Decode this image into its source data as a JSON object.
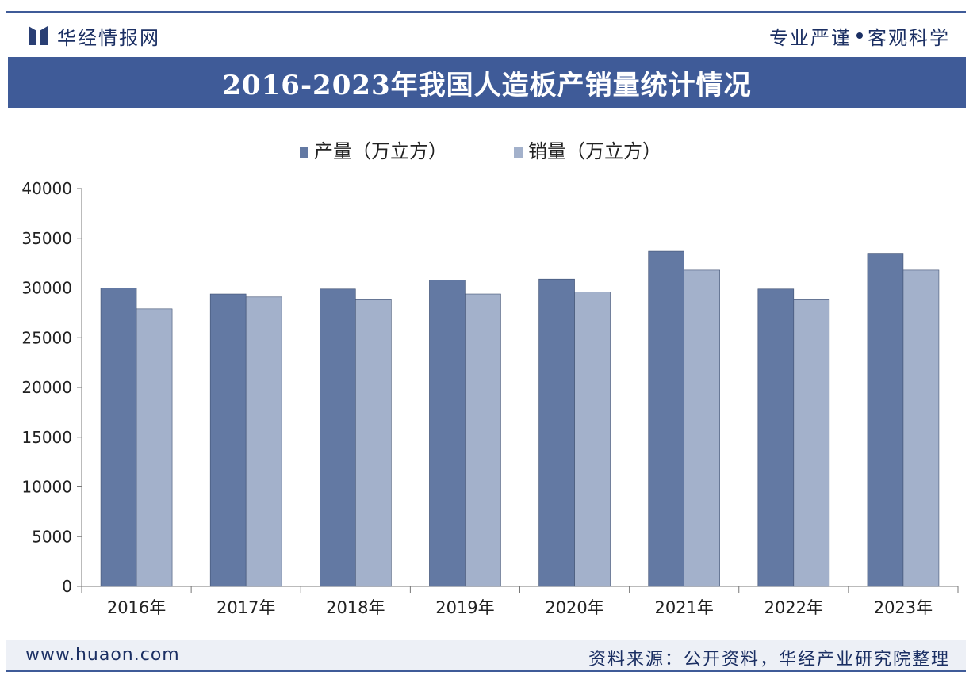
{
  "header": {
    "brand_name": "华经情报网",
    "motto_left": "专业严谨",
    "motto_right": "客观科学"
  },
  "title": "2016-2023年我国人造板产销量统计情况",
  "chart_data": {
    "type": "bar",
    "categories": [
      "2016年",
      "2017年",
      "2018年",
      "2019年",
      "2020年",
      "2021年",
      "2022年",
      "2023年"
    ],
    "series": [
      {
        "name": "产量（万立方）",
        "color": "#6379a3",
        "values": [
          30000,
          29400,
          29900,
          30800,
          30900,
          33700,
          29900,
          33500
        ]
      },
      {
        "name": "销量（万立方）",
        "color": "#a3b1cb",
        "values": [
          27900,
          29100,
          28900,
          29400,
          29600,
          31800,
          28900,
          31800
        ]
      }
    ],
    "ylim": [
      0,
      40000
    ],
    "yticks": [
      0,
      5000,
      10000,
      15000,
      20000,
      25000,
      30000,
      35000,
      40000
    ],
    "legend_position": "top-center",
    "grid": false
  },
  "footer": {
    "website": "www.huaon.com",
    "source": "资料来源：公开资料，华经产业研究院整理"
  }
}
